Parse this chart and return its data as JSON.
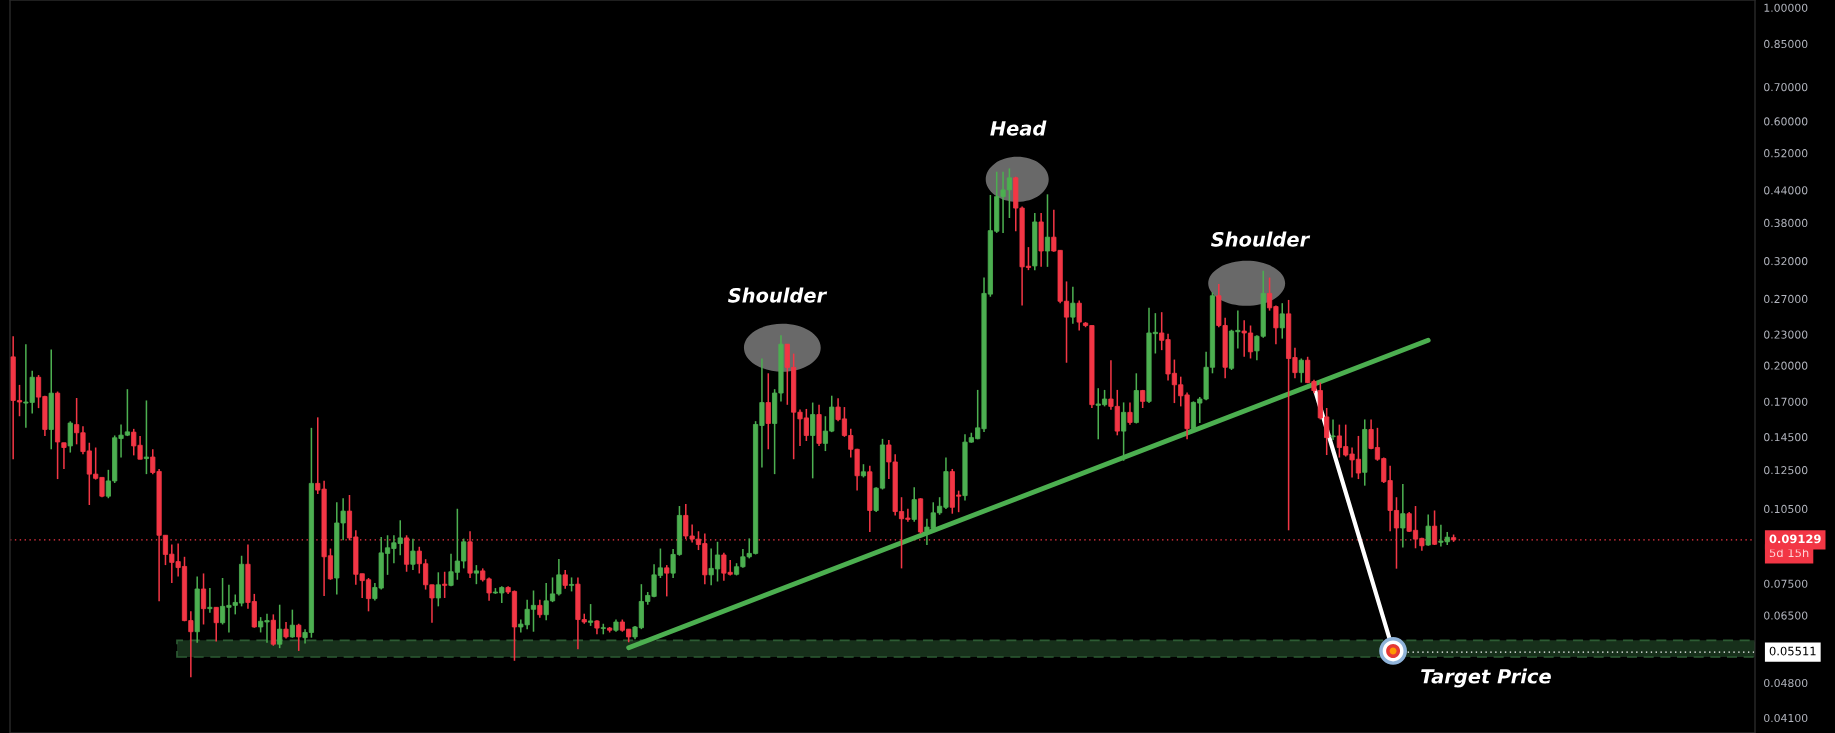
{
  "chart_data": {
    "type": "candlestick",
    "categories": [
      null,
      null,
      null,
      null,
      null,
      null,
      null,
      null,
      null,
      null,
      null,
      null,
      null,
      null,
      null,
      null,
      null,
      null,
      null,
      null,
      null,
      null,
      null,
      null,
      null,
      null,
      null,
      null,
      null,
      null,
      null,
      null,
      null,
      null,
      null,
      null,
      null,
      null,
      null,
      null,
      null,
      null,
      null,
      null,
      null,
      null,
      null,
      null,
      null,
      null,
      null,
      null,
      null,
      null,
      null,
      null,
      null,
      null,
      null,
      null,
      null,
      null,
      null,
      null,
      null,
      null,
      null,
      null,
      null,
      null,
      null,
      null,
      null,
      null,
      null,
      null,
      null,
      null,
      null,
      null,
      null,
      null,
      null,
      null,
      null,
      null,
      null,
      null,
      null,
      null,
      null,
      null,
      null,
      null,
      null,
      null,
      null,
      null,
      null,
      null,
      null,
      null,
      null,
      null,
      null,
      null,
      null,
      null,
      null,
      null,
      null,
      null,
      null,
      null,
      null,
      null,
      null,
      null,
      null,
      null,
      null,
      null,
      null,
      null,
      null,
      null,
      null,
      null,
      null,
      null,
      null,
      null,
      null,
      null,
      null,
      null,
      null,
      null,
      null,
      null,
      null,
      null,
      null,
      null,
      null,
      null,
      null,
      null,
      null,
      null,
      null,
      null,
      null,
      null,
      null,
      null,
      null,
      null,
      null,
      null,
      null,
      null,
      null,
      null,
      null,
      null,
      null,
      null,
      null,
      null,
      null,
      null,
      null,
      null,
      null,
      null,
      null,
      null,
      null,
      null,
      null,
      null,
      null,
      null,
      null,
      null,
      null,
      null,
      null,
      null,
      null,
      null,
      null,
      null,
      null,
      null,
      null,
      null,
      null,
      null,
      null,
      null,
      null,
      null,
      null,
      null,
      null,
      null,
      null,
      null,
      null,
      null,
      null,
      null,
      null,
      null,
      null,
      null,
      null,
      null,
      null,
      null,
      null,
      null,
      null,
      null,
      null,
      null,
      null,
      null,
      null,
      null,
      null,
      null,
      null,
      null,
      null,
      null,
      null,
      null,
      null,
      null,
      null,
      null,
      null,
      null,
      null,
      null,
      null,
      null,
      null,
      null,
      null,
      null,
      null,
      null,
      null,
      null,
      null,
      null,
      null,
      null,
      null,
      null,
      null,
      null,
      null,
      null,
      null,
      null,
      null,
      null,
      null,
      null,
      null
    ],
    "ohlc": [
      [
        0.2079,
        0.2281,
        0.1312,
        0.1709
      ],
      [
        0.1709,
        0.1833,
        0.1592,
        0.1697
      ],
      [
        0.1689,
        0.2201,
        0.1511,
        0.1697
      ],
      [
        0.1694,
        0.1954,
        0.1611,
        0.1897
      ],
      [
        0.1897,
        0.1916,
        0.1651,
        0.1735
      ],
      [
        0.174,
        0.1745,
        0.1456,
        0.15
      ],
      [
        0.15,
        0.2149,
        0.1372,
        0.1766
      ],
      [
        0.1766,
        0.1779,
        0.12,
        0.1418
      ],
      [
        0.1413,
        0.1413,
        0.1255,
        0.1383
      ],
      [
        0.1393,
        0.1556,
        0.1352,
        0.1544
      ],
      [
        0.1533,
        0.1728,
        0.1403,
        0.1478
      ],
      [
        0.1478,
        0.1522,
        0.1342,
        0.1358
      ],
      [
        0.1362,
        0.1413,
        0.1068,
        0.1227
      ],
      [
        0.1227,
        0.1383,
        0.1197,
        0.1204
      ],
      [
        0.1209,
        0.1209,
        0.1106,
        0.1111
      ],
      [
        0.1111,
        0.1251,
        0.1101,
        0.119
      ],
      [
        0.119,
        0.146,
        0.1179,
        0.1445
      ],
      [
        0.144,
        0.1533,
        0.1322,
        0.1462
      ],
      [
        0.1462,
        0.1798,
        0.1456,
        0.1484
      ],
      [
        0.1482,
        0.1504,
        0.1335,
        0.1393
      ],
      [
        0.1397,
        0.1456,
        0.1312,
        0.1312
      ],
      [
        0.1316,
        0.1709,
        0.1227,
        0.1325
      ],
      [
        0.1325,
        0.1372,
        0.1227,
        0.1236
      ],
      [
        0.1242,
        0.1255,
        0.0693,
        0.0932
      ],
      [
        0.0932,
        0.0932,
        0.0815,
        0.0855
      ],
      [
        0.0856,
        0.0894,
        0.0752,
        0.0825
      ],
      [
        0.0828,
        0.0898,
        0.0774,
        0.0806
      ],
      [
        0.081,
        0.0846,
        0.0633,
        0.0635
      ],
      [
        0.0635,
        0.0662,
        0.0492,
        0.0604
      ],
      [
        0.0604,
        0.0774,
        0.0575,
        0.0732
      ],
      [
        0.0732,
        0.0785,
        0.0624,
        0.067
      ],
      [
        0.067,
        0.0735,
        0.0658,
        0.0674
      ],
      [
        0.0674,
        0.0674,
        0.0578,
        0.0629
      ],
      [
        0.0629,
        0.0769,
        0.0624,
        0.0677
      ],
      [
        0.0674,
        0.0746,
        0.0602,
        0.068
      ],
      [
        0.068,
        0.0714,
        0.0653,
        0.0689
      ],
      [
        0.0687,
        0.085,
        0.0677,
        0.0818
      ],
      [
        0.0818,
        0.0894,
        0.067,
        0.0689
      ],
      [
        0.0692,
        0.0716,
        0.0615,
        0.0617
      ],
      [
        0.0617,
        0.0645,
        0.0602,
        0.0633
      ],
      [
        0.0631,
        0.0655,
        0.0575,
        0.0635
      ],
      [
        0.0636,
        0.0653,
        0.0567,
        0.0571
      ],
      [
        0.0571,
        0.0682,
        0.0561,
        0.0611
      ],
      [
        0.0611,
        0.0631,
        0.0586,
        0.059
      ],
      [
        0.059,
        0.0667,
        0.0588,
        0.0622
      ],
      [
        0.0622,
        0.0626,
        0.0554,
        0.059
      ],
      [
        0.0588,
        0.0611,
        0.0573,
        0.0602
      ],
      [
        0.0602,
        0.1511,
        0.0588,
        0.1177
      ],
      [
        0.1177,
        0.1584,
        0.1122,
        0.1142
      ],
      [
        0.1147,
        0.1191,
        0.0709,
        0.0846
      ],
      [
        0.085,
        0.0878,
        0.0763,
        0.0766
      ],
      [
        0.0769,
        0.1081,
        0.0714,
        0.0985
      ],
      [
        0.0985,
        0.1101,
        0.0911,
        0.1039
      ],
      [
        0.1039,
        0.1117,
        0.0911,
        0.0921
      ],
      [
        0.0925,
        0.0953,
        0.0746,
        0.0782
      ],
      [
        0.0784,
        0.0784,
        0.0703,
        0.076
      ],
      [
        0.0763,
        0.0769,
        0.0662,
        0.0701
      ],
      [
        0.0701,
        0.0752,
        0.0695,
        0.0737
      ],
      [
        0.0735,
        0.0925,
        0.073,
        0.0861
      ],
      [
        0.0859,
        0.0932,
        0.078,
        0.0881
      ],
      [
        0.0878,
        0.0932,
        0.0822,
        0.0901
      ],
      [
        0.0898,
        0.0997,
        0.0852,
        0.0921
      ],
      [
        0.0921,
        0.0932,
        0.0791,
        0.0818
      ],
      [
        0.0818,
        0.0918,
        0.0797,
        0.0868
      ],
      [
        0.0868,
        0.0885,
        0.0785,
        0.082
      ],
      [
        0.082,
        0.0837,
        0.073,
        0.0746
      ],
      [
        0.0746,
        0.0746,
        0.0629,
        0.0703
      ],
      [
        0.0703,
        0.0789,
        0.0677,
        0.0746
      ],
      [
        0.0748,
        0.0791,
        0.0703,
        0.0744
      ],
      [
        0.0744,
        0.0858,
        0.0741,
        0.0791
      ],
      [
        0.0789,
        0.105,
        0.0763,
        0.083
      ],
      [
        0.083,
        0.0918,
        0.0803,
        0.0905
      ],
      [
        0.0905,
        0.0949,
        0.0769,
        0.0786
      ],
      [
        0.0786,
        0.0815,
        0.0748,
        0.0794
      ],
      [
        0.0794,
        0.0803,
        0.0757,
        0.0763
      ],
      [
        0.0766,
        0.0771,
        0.0694,
        0.0719
      ],
      [
        0.0719,
        0.0735,
        0.0716,
        0.0722
      ],
      [
        0.0719,
        0.0741,
        0.0687,
        0.0737
      ],
      [
        0.0737,
        0.0741,
        0.0716,
        0.0722
      ],
      [
        0.0724,
        0.0727,
        0.053,
        0.0617
      ],
      [
        0.0617,
        0.0638,
        0.0602,
        0.0625
      ],
      [
        0.0623,
        0.0697,
        0.0611,
        0.0668
      ],
      [
        0.0668,
        0.0727,
        0.0604,
        0.068
      ],
      [
        0.068,
        0.0697,
        0.0643,
        0.0652
      ],
      [
        0.0652,
        0.0752,
        0.0636,
        0.0694
      ],
      [
        0.0694,
        0.0771,
        0.069,
        0.0716
      ],
      [
        0.0716,
        0.0838,
        0.0711,
        0.078
      ],
      [
        0.078,
        0.0797,
        0.0733,
        0.0744
      ],
      [
        0.0744,
        0.0771,
        0.0724,
        0.0747
      ],
      [
        0.0748,
        0.0771,
        0.0558,
        0.0638
      ],
      [
        0.0638,
        0.0655,
        0.0626,
        0.0631
      ],
      [
        0.063,
        0.0684,
        0.062,
        0.0634
      ],
      [
        0.0634,
        0.0636,
        0.0597,
        0.0614
      ],
      [
        0.0613,
        0.0626,
        0.0597,
        0.0615
      ],
      [
        0.0614,
        0.0617,
        0.0602,
        0.0608
      ],
      [
        0.0608,
        0.0638,
        0.0604,
        0.0631
      ],
      [
        0.0631,
        0.0638,
        0.0604,
        0.0608
      ],
      [
        0.0611,
        0.0611,
        0.0576,
        0.059
      ],
      [
        0.059,
        0.062,
        0.0584,
        0.0617
      ],
      [
        0.0615,
        0.0748,
        0.0611,
        0.0692
      ],
      [
        0.0692,
        0.0722,
        0.0682,
        0.0711
      ],
      [
        0.0708,
        0.0818,
        0.0705,
        0.078
      ],
      [
        0.0778,
        0.0878,
        0.0769,
        0.0805
      ],
      [
        0.0805,
        0.0815,
        0.0708,
        0.0786
      ],
      [
        0.0786,
        0.0876,
        0.0769,
        0.0855
      ],
      [
        0.0855,
        0.1063,
        0.085,
        0.1019
      ],
      [
        0.1019,
        0.1073,
        0.0916,
        0.0929
      ],
      [
        0.0929,
        0.0978,
        0.0902,
        0.0916
      ],
      [
        0.0916,
        0.0949,
        0.0872,
        0.0894
      ],
      [
        0.0898,
        0.0939,
        0.0748,
        0.078
      ],
      [
        0.078,
        0.0878,
        0.0744,
        0.0803
      ],
      [
        0.0801,
        0.0905,
        0.0757,
        0.0853
      ],
      [
        0.0853,
        0.0862,
        0.076,
        0.0786
      ],
      [
        0.0789,
        0.0834,
        0.0778,
        0.0782
      ],
      [
        0.0782,
        0.0822,
        0.0778,
        0.0809
      ],
      [
        0.0809,
        0.0876,
        0.0805,
        0.0846
      ],
      [
        0.0846,
        0.0919,
        0.084,
        0.0859
      ],
      [
        0.0859,
        0.1557,
        0.0855,
        0.1534
      ],
      [
        0.1527,
        0.2065,
        0.1264,
        0.1693
      ],
      [
        0.1693,
        0.1931,
        0.1372,
        0.1541
      ],
      [
        0.1541,
        0.1798,
        0.1227,
        0.1767
      ],
      [
        0.1767,
        0.2291,
        0.1701,
        0.2201
      ],
      [
        0.2201,
        0.2201,
        0.1676,
        0.1983
      ],
      [
        0.1983,
        0.211,
        0.1312,
        0.1621
      ],
      [
        0.1621,
        0.164,
        0.1393,
        0.1573
      ],
      [
        0.158,
        0.1645,
        0.1424,
        0.146
      ],
      [
        0.146,
        0.1693,
        0.1204,
        0.1604
      ],
      [
        0.1604,
        0.1676,
        0.1393,
        0.1409
      ],
      [
        0.1409,
        0.1592,
        0.1361,
        0.1489
      ],
      [
        0.1489,
        0.1746,
        0.1482,
        0.1659
      ],
      [
        0.1659,
        0.1727,
        0.1557,
        0.1568
      ],
      [
        0.1573,
        0.1659,
        0.1451,
        0.146
      ],
      [
        0.146,
        0.1505,
        0.1322,
        0.1372
      ],
      [
        0.1372,
        0.1376,
        0.114,
        0.1218
      ],
      [
        0.1218,
        0.1283,
        0.1209,
        0.124
      ],
      [
        0.124,
        0.1274,
        0.0946,
        0.1042
      ],
      [
        0.1042,
        0.1157,
        0.1035,
        0.1152
      ],
      [
        0.1152,
        0.1438,
        0.1145,
        0.1399
      ],
      [
        0.1399,
        0.143,
        0.1201,
        0.1296
      ],
      [
        0.1296,
        0.1341,
        0.1019,
        0.1037
      ],
      [
        0.1037,
        0.1106,
        0.0803,
        0.1004
      ],
      [
        0.1007,
        0.105,
        0.099,
        0.1001
      ],
      [
        0.1001,
        0.1157,
        0.099,
        0.1094
      ],
      [
        0.1098,
        0.1101,
        0.0939,
        0.0946
      ],
      [
        0.0949,
        0.1004,
        0.0892,
        0.0967
      ],
      [
        0.096,
        0.1081,
        0.0953,
        0.1031
      ],
      [
        0.1031,
        0.1106,
        0.1022,
        0.1062
      ],
      [
        0.1057,
        0.1322,
        0.1049,
        0.1241
      ],
      [
        0.1241,
        0.1256,
        0.1027,
        0.1057
      ],
      [
        0.1117,
        0.1139,
        0.1034,
        0.1111
      ],
      [
        0.1114,
        0.1468,
        0.109,
        0.1417
      ],
      [
        0.1417,
        0.1478,
        0.1413,
        0.1446
      ],
      [
        0.1439,
        0.1792,
        0.1435,
        0.1511
      ],
      [
        0.1505,
        0.297,
        0.1483,
        0.2766
      ],
      [
        0.2757,
        0.4306,
        0.2725,
        0.3668
      ],
      [
        0.3658,
        0.4781,
        0.3631,
        0.4275
      ],
      [
        0.4275,
        0.4781,
        0.3631,
        0.4406
      ],
      [
        0.4406,
        0.4853,
        0.3883,
        0.4652
      ],
      [
        0.4652,
        0.4674,
        0.3658,
        0.406
      ],
      [
        0.406,
        0.4091,
        0.2619,
        0.3117
      ],
      [
        0.3126,
        0.3406,
        0.3071,
        0.3108
      ],
      [
        0.313,
        0.3969,
        0.3071,
        0.3814
      ],
      [
        0.3814,
        0.3969,
        0.3117,
        0.3347
      ],
      [
        0.3347,
        0.4319,
        0.3117,
        0.3562
      ],
      [
        0.3562,
        0.4029,
        0.3337,
        0.3347
      ],
      [
        0.3357,
        0.3357,
        0.2647,
        0.267
      ],
      [
        0.267,
        0.2919,
        0.2025,
        0.2486
      ],
      [
        0.2486,
        0.2851,
        0.2413,
        0.2647
      ],
      [
        0.2647,
        0.2678,
        0.2342,
        0.2431
      ],
      [
        0.242,
        0.2431,
        0.2376,
        0.2394
      ],
      [
        0.2394,
        0.2394,
        0.1652,
        0.1677
      ],
      [
        0.1672,
        0.1806,
        0.1435,
        0.1682
      ],
      [
        0.1677,
        0.1792,
        0.1664,
        0.172
      ],
      [
        0.172,
        0.2048,
        0.1639,
        0.1664
      ],
      [
        0.1664,
        0.1792,
        0.1461,
        0.1489
      ],
      [
        0.1489,
        0.1694,
        0.1303,
        0.162
      ],
      [
        0.162,
        0.1694,
        0.1532,
        0.1548
      ],
      [
        0.1548,
        0.1931,
        0.1541,
        0.1787
      ],
      [
        0.1787,
        0.1792,
        0.1652,
        0.1702
      ],
      [
        0.1702,
        0.2592,
        0.1689,
        0.2315
      ],
      [
        0.2308,
        0.2531,
        0.2111,
        0.2322
      ],
      [
        0.2315,
        0.2542,
        0.2143,
        0.224
      ],
      [
        0.2247,
        0.2308,
        0.1869,
        0.1925
      ],
      [
        0.1931,
        0.2054,
        0.1689,
        0.1834
      ],
      [
        0.1834,
        0.1902,
        0.1664,
        0.1745
      ],
      [
        0.1752,
        0.1771,
        0.1435,
        0.1505
      ],
      [
        0.1505,
        0.1702,
        0.1496,
        0.1694
      ],
      [
        0.1689,
        0.1735,
        0.1545,
        0.172
      ],
      [
        0.172,
        0.2127,
        0.171,
        0.1984
      ],
      [
        0.1984,
        0.2778,
        0.1931,
        0.2737
      ],
      [
        0.2737,
        0.2885,
        0.2376,
        0.2394
      ],
      [
        0.2394,
        0.2479,
        0.1888,
        0.1984
      ],
      [
        0.1975,
        0.2349,
        0.196,
        0.2335
      ],
      [
        0.2328,
        0.256,
        0.2159,
        0.2342
      ],
      [
        0.2335,
        0.245,
        0.208,
        0.2315
      ],
      [
        0.2315,
        0.2394,
        0.2064,
        0.2127
      ],
      [
        0.2136,
        0.2291,
        0.2048,
        0.2281
      ],
      [
        0.2281,
        0.3062,
        0.2267,
        0.2766
      ],
      [
        0.2766,
        0.297,
        0.256,
        0.2592
      ],
      [
        0.2607,
        0.2619,
        0.22,
        0.2369
      ],
      [
        0.2369,
        0.2647,
        0.2257,
        0.2523
      ],
      [
        0.2523,
        0.2686,
        0.0953,
        0.2064
      ],
      [
        0.2073,
        0.2165,
        0.1888,
        0.1937
      ],
      [
        0.1937,
        0.2064,
        0.1852,
        0.2048
      ],
      [
        0.2048,
        0.208,
        0.1847,
        0.1852
      ],
      [
        0.1861,
        0.1875,
        0.1765,
        0.1787
      ],
      [
        0.1787,
        0.1852,
        0.1569,
        0.158
      ],
      [
        0.1587,
        0.1652,
        0.1337,
        0.1446
      ],
      [
        0.1452,
        0.1569,
        0.143,
        0.1457
      ],
      [
        0.1457,
        0.1533,
        0.1322,
        0.1383
      ],
      [
        0.1389,
        0.1533,
        0.1328,
        0.1337
      ],
      [
        0.1343,
        0.1383,
        0.1209,
        0.1308
      ],
      [
        0.1312,
        0.1457,
        0.12,
        0.1233
      ],
      [
        0.1237,
        0.1569,
        0.1165,
        0.15
      ],
      [
        0.15,
        0.1569,
        0.1373,
        0.1377
      ],
      [
        0.1383,
        0.1511,
        0.1303,
        0.1312
      ],
      [
        0.1316,
        0.1322,
        0.1179,
        0.1186
      ],
      [
        0.1192,
        0.1274,
        0.0949,
        0.1042
      ],
      [
        0.1042,
        0.1106,
        0.0802,
        0.0963
      ],
      [
        0.0963,
        0.1174,
        0.0882,
        0.1027
      ],
      [
        0.1027,
        0.1035,
        0.0946,
        0.0949
      ],
      [
        0.0953,
        0.1063,
        0.0879,
        0.0916
      ],
      [
        0.0919,
        0.0922,
        0.0869,
        0.0889
      ],
      [
        0.0892,
        0.1023,
        0.0889,
        0.0971
      ],
      [
        0.0971,
        0.1042,
        0.0892,
        0.0895
      ],
      [
        0.0903,
        0.0977,
        0.0886,
        0.0908
      ],
      [
        0.0905,
        0.0946,
        0.0892,
        0.0924
      ],
      [
        0.0922,
        0.0935,
        0.0905,
        0.09129
      ],
      null,
      null,
      null,
      null,
      null,
      null,
      null,
      null,
      null,
      null,
      null,
      null,
      null,
      null,
      null,
      null,
      null,
      null,
      null,
      null,
      null,
      null,
      null,
      null,
      null,
      null,
      null,
      null,
      null,
      null,
      null,
      null,
      null,
      null,
      null,
      null,
      null,
      null,
      null,
      null,
      null,
      null,
      null,
      null,
      null,
      null,
      null
    ],
    "colors": [
      "#f23645",
      "#f23645",
      "#4caf50",
      "#4caf50",
      "#f23645",
      "#f23645",
      "#4caf50",
      "#f23645",
      "#f23645",
      "#4caf50",
      "#f23645",
      "#f23645",
      "#f23645",
      "#f23645",
      "#f23645",
      "#4caf50",
      "#4caf50",
      "#4caf50",
      "#4caf50",
      "#f23645",
      "#f23645",
      "#4caf50",
      "#f23645",
      "#f23645",
      "#f23645",
      "#f23645",
      "#f23645",
      "#f23645",
      "#f23645",
      "#4caf50",
      "#f23645",
      "#4caf50",
      "#f23645",
      "#4caf50",
      "#4caf50",
      "#4caf50",
      "#4caf50",
      "#f23645",
      "#f23645",
      "#4caf50",
      "#4caf50",
      "#f23645",
      "#4caf50",
      "#f23645",
      "#4caf50",
      "#f23645",
      "#4caf50",
      "#4caf50",
      "#f23645",
      "#f23645",
      "#f23645",
      "#4caf50",
      "#4caf50",
      "#f23645",
      "#f23645",
      "#f23645",
      "#f23645",
      "#4caf50",
      "#4caf50",
      "#4caf50",
      "#4caf50",
      "#4caf50",
      "#f23645",
      "#4caf50",
      "#f23645",
      "#f23645",
      "#f23645",
      "#4caf50",
      "#f23645",
      "#4caf50",
      "#4caf50",
      "#4caf50",
      "#f23645",
      "#4caf50",
      "#f23645",
      "#f23645",
      "#4caf50",
      "#4caf50",
      "#f23645",
      "#f23645",
      "#4caf50",
      "#4caf50",
      "#4caf50",
      "#f23645",
      "#4caf50",
      "#4caf50",
      "#4caf50",
      "#f23645",
      "#4caf50",
      "#f23645",
      "#f23645",
      "#4caf50",
      "#f23645",
      "#4caf50",
      "#f23645",
      "#4caf50",
      "#f23645",
      "#f23645",
      "#4caf50",
      "#4caf50",
      "#4caf50",
      "#4caf50",
      "#4caf50",
      "#f23645",
      "#4caf50",
      "#4caf50",
      "#f23645",
      "#f23645",
      "#f23645",
      "#f23645",
      "#4caf50",
      "#4caf50",
      "#f23645",
      "#f23645",
      "#4caf50",
      "#4caf50",
      "#4caf50",
      "#4caf50",
      "#4caf50",
      "#f23645",
      "#4caf50",
      "#4caf50",
      "#f23645",
      "#f23645",
      "#f23645",
      "#f23645",
      "#4caf50",
      "#f23645",
      "#4caf50",
      "#4caf50",
      "#f23645",
      "#f23645",
      "#f23645",
      "#f23645",
      "#4caf50",
      "#f23645",
      "#4caf50",
      "#4caf50",
      "#f23645",
      "#f23645",
      "#f23645",
      "#f23645",
      "#4caf50",
      "#f23645",
      "#4caf50",
      "#4caf50",
      "#4caf50",
      "#4caf50",
      "#f23645",
      "#f23645",
      "#4caf50",
      "#4caf50",
      "#4caf50",
      "#4caf50",
      "#4caf50",
      "#4caf50",
      "#4caf50",
      "#4caf50",
      "#f23645",
      "#f23645",
      "#f23645",
      "#4caf50",
      "#f23645",
      "#4caf50",
      "#f23645",
      "#f23645",
      "#f23645",
      "#4caf50",
      "#f23645",
      "#f23645",
      "#f23645",
      "#4caf50",
      "#4caf50",
      "#f23645",
      "#f23645",
      "#4caf50",
      "#f23645",
      "#4caf50",
      "#f23645",
      "#4caf50",
      "#4caf50",
      "#f23645",
      "#f23645",
      "#f23645",
      "#f23645",
      "#f23645",
      "#4caf50",
      "#4caf50",
      "#4caf50",
      "#4caf50",
      "#f23645",
      "#f23645",
      "#4caf50",
      "#4caf50",
      "#f23645",
      "#f23645",
      "#4caf50",
      "#4caf50",
      "#f23645",
      "#f23645",
      "#4caf50",
      "#f23645",
      "#f23645",
      "#4caf50",
      "#f23645",
      "#f23645",
      "#f23645",
      "#f23645",
      "#4caf50",
      "#f23645",
      "#f23645",
      "#f23645",
      "#f23645",
      "#4caf50",
      "#f23645",
      "#f23645",
      "#f23645",
      "#f23645",
      "#f23645",
      "#4caf50",
      "#f23645",
      "#f23645",
      "#f23645",
      "#4caf50",
      "#f23645",
      "#4caf50",
      "#4caf50",
      "#f23645",
      null,
      null,
      null,
      null,
      null,
      null,
      null,
      null,
      null,
      null,
      null,
      null,
      null,
      null,
      null,
      null,
      null,
      null,
      null,
      null,
      null,
      null,
      null,
      null,
      null,
      null,
      null,
      null,
      null,
      null,
      null,
      null,
      null,
      null,
      null,
      null,
      null,
      null,
      null,
      null,
      null,
      null,
      null,
      null,
      null,
      null,
      null
    ],
    "series": [
      {
        "type": "line",
        "color": "#4caf50",
        "values": [
          null,
          null,
          null,
          null,
          null,
          null,
          null,
          null,
          null,
          null,
          null,
          null,
          null,
          null,
          null,
          null,
          null,
          null,
          null,
          null,
          null,
          null,
          null,
          null,
          null,
          null,
          null,
          null,
          null,
          null,
          null,
          null,
          null,
          null,
          null,
          null,
          null,
          null,
          null,
          null,
          null,
          null,
          null,
          null,
          null,
          null,
          null,
          null,
          null,
          null,
          null,
          null,
          null,
          null,
          null,
          null,
          null,
          null,
          null,
          null,
          null,
          null,
          null,
          null,
          null,
          null,
          null,
          null,
          null,
          null,
          null,
          null,
          null,
          null,
          null,
          null,
          null,
          null,
          null,
          null,
          null,
          null,
          null,
          null,
          null,
          null,
          null,
          null,
          null,
          null,
          null,
          null,
          null,
          null,
          null,
          null,
          null,
          0.0562,
          null,
          null,
          null,
          null,
          null,
          null,
          null,
          null,
          null,
          null,
          null,
          null,
          null,
          null,
          null,
          null,
          null,
          null,
          null,
          null,
          null,
          null,
          null,
          null,
          null,
          null,
          null,
          null,
          null,
          null,
          null,
          null,
          null,
          null,
          null,
          null,
          null,
          null,
          null,
          null,
          null,
          null,
          null,
          null,
          null,
          null,
          null,
          null,
          null,
          null,
          null,
          null,
          null,
          null,
          null,
          null,
          null,
          null,
          null,
          null,
          null,
          null,
          null,
          null,
          null,
          null,
          null,
          null,
          null,
          null,
          null,
          null,
          null,
          null,
          null,
          null,
          null,
          null,
          null,
          null,
          null,
          null,
          null,
          null,
          null,
          null,
          null,
          null,
          null,
          null,
          null,
          null,
          null,
          null,
          null,
          null,
          null,
          null,
          null,
          null,
          null,
          null,
          null,
          null,
          null,
          null,
          null,
          null,
          null,
          null,
          null,
          null,
          null,
          null,
          null,
          null,
          null,
          null,
          null,
          null,
          null,
          null,
          null,
          null,
          null,
          0.224,
          null,
          null,
          null,
          null,
          null,
          null,
          null,
          null,
          null,
          null,
          null,
          null,
          null,
          null,
          null,
          null,
          null,
          null,
          null,
          null,
          null,
          null,
          null,
          null,
          null,
          null,
          null,
          null,
          null,
          null,
          null,
          null,
          null,
          null,
          null,
          null,
          null,
          null,
          null,
          null,
          null,
          null,
          null,
          null,
          null,
          null,
          null,
          null,
          null,
          null,
          null
        ]
      }
    ],
    "log": true,
    "ylim": [
      0.0383,
      1.035
    ],
    "yticks": [
      {
        "value": 0.041,
        "label": "0.04100"
      },
      {
        "value": 0.048,
        "label": "0.04800"
      },
      {
        "value": 0.065,
        "label": "0.06500"
      },
      {
        "value": 0.075,
        "label": "0.07500"
      },
      {
        "value": 0.105,
        "label": "0.10500"
      },
      {
        "value": 0.125,
        "label": "0.12500"
      },
      {
        "value": 0.145,
        "label": "0.14500"
      },
      {
        "value": 0.17,
        "label": "0.17000"
      },
      {
        "value": 0.2,
        "label": "0.20000"
      },
      {
        "value": 0.23,
        "label": "0.23000"
      },
      {
        "value": 0.27,
        "label": "0.27000"
      },
      {
        "value": 0.32,
        "label": "0.32000"
      },
      {
        "value": 0.38,
        "label": "0.38000"
      },
      {
        "value": 0.44,
        "label": "0.44000"
      },
      {
        "value": 0.52,
        "label": "0.52000"
      },
      {
        "value": 0.6,
        "label": "0.60000"
      },
      {
        "value": 0.7,
        "label": "0.70000"
      },
      {
        "value": 0.85,
        "label": "0.85000"
      },
      {
        "value": 1,
        "label": "1.00000"
      }
    ],
    "tick_labels": "y",
    "ref_lines": [
      {
        "axis": "y",
        "value": 0.09129,
        "label": "0.09129",
        "color": "#f23645",
        "line_style": "dotted"
      },
      {
        "axis": "y",
        "value": 0.05511,
        "label": "0.05511",
        "color": "#ffffff",
        "line_style": "dotted"
      }
    ],
    "bands": [
      {
        "axis": "y",
        "from": 0.0539,
        "to": 0.0581,
        "color": "#17301b"
      }
    ],
    "annotations": [
      "Shoulder",
      "Head",
      "Shoulder",
      "Target Price",
      "5d 15h"
    ]
  }
}
